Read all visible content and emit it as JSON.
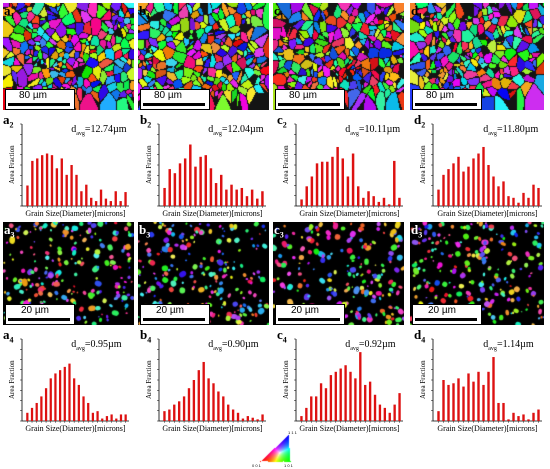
{
  "maps_top": [
    {
      "id": "a1",
      "letter": "a",
      "sub": "1",
      "scale": "80 µm"
    },
    {
      "id": "b1",
      "letter": "b",
      "sub": "1",
      "scale": "80 µm"
    },
    {
      "id": "c1",
      "letter": "c",
      "sub": "1",
      "scale": "80 µm"
    },
    {
      "id": "d1",
      "letter": "d",
      "sub": "1",
      "scale": "80 µm"
    }
  ],
  "maps_bottom": [
    {
      "id": "a3",
      "letter": "a",
      "sub": "3",
      "scale": "20 µm"
    },
    {
      "id": "b3",
      "letter": "b",
      "sub": "3",
      "scale": "20 µm"
    },
    {
      "id": "c3",
      "letter": "c",
      "sub": "3",
      "scale": "20 µm"
    },
    {
      "id": "d3",
      "letter": "d",
      "sub": "3",
      "scale": "20 µm"
    }
  ],
  "ipf_key": {
    "corner_111": "1 1 1",
    "corner_001": "0 0 1",
    "corner_101": "1 0 1"
  },
  "chart_data": [
    {
      "id": "a2",
      "letter": "a",
      "sub": "2",
      "type": "bar",
      "davg_prefix": "d",
      "davg_sub": "avg",
      "davg_value": "=12.74µm",
      "ylabel": "Area Fraction",
      "xlabel": "Grain Size(Diameter)[microns]",
      "color": "#dd1111",
      "values": [
        0.25,
        0.55,
        0.58,
        0.62,
        0.64,
        0.62,
        0.46,
        0.58,
        0.38,
        0.5,
        0.38,
        0.18,
        0.26,
        0.1,
        0.06,
        0.2,
        0.09,
        0.06,
        0.18,
        0.06,
        0.17
      ]
    },
    {
      "id": "b2",
      "letter": "b",
      "sub": "2",
      "type": "bar",
      "davg_prefix": "d",
      "davg_sub": "avg",
      "davg_value": "=12.04µm",
      "ylabel": "Area Fraction",
      "xlabel": "Grain Size(Diameter)[microns]",
      "color": "#dd1111",
      "values": [
        0.22,
        0.45,
        0.4,
        0.52,
        0.58,
        0.75,
        0.48,
        0.6,
        0.62,
        0.46,
        0.28,
        0.38,
        0.2,
        0.26,
        0.2,
        0.22,
        0.12,
        0.2,
        0.09,
        0.18
      ]
    },
    {
      "id": "c2",
      "letter": "c",
      "sub": "2",
      "type": "bar",
      "davg_prefix": "d",
      "davg_sub": "avg",
      "davg_value": "=10.11µm",
      "ylabel": "Area Fraction",
      "xlabel": "Grain Size(Diameter)[microns]",
      "color": "#dd1111",
      "values": [
        0.08,
        0.24,
        0.36,
        0.52,
        0.54,
        0.54,
        0.6,
        0.72,
        0.58,
        0.36,
        0.64,
        0.24,
        0.1,
        0.18,
        0.12,
        0.05,
        0.1,
        0.02,
        0.55,
        0.1
      ]
    },
    {
      "id": "d2",
      "letter": "d",
      "sub": "2",
      "type": "bar",
      "davg_prefix": "d",
      "davg_sub": "avg",
      "davg_value": "=11.80µm",
      "ylabel": "Area Fraction",
      "xlabel": "Grain Size(Diameter)[microns]",
      "color": "#dd1111",
      "values": [
        0.2,
        0.38,
        0.45,
        0.52,
        0.6,
        0.42,
        0.48,
        0.58,
        0.64,
        0.72,
        0.5,
        0.36,
        0.24,
        0.3,
        0.12,
        0.1,
        0.04,
        0.16,
        0.1,
        0.26,
        0.22
      ]
    },
    {
      "id": "a4",
      "letter": "a",
      "sub": "4",
      "type": "bar",
      "davg_prefix": "d",
      "davg_sub": "avg",
      "davg_value": "=0.95µm",
      "ylabel": "Area Fraction",
      "xlabel": "Grain Size(Diameter)[microns]",
      "color": "#dd1111",
      "values": [
        0.1,
        0.16,
        0.22,
        0.3,
        0.4,
        0.52,
        0.58,
        0.62,
        0.66,
        0.7,
        0.52,
        0.44,
        0.3,
        0.22,
        0.1,
        0.12,
        0.03,
        0.06,
        0.08,
        0.03,
        0.08,
        0.08
      ]
    },
    {
      "id": "b4",
      "letter": "b",
      "sub": "4",
      "type": "bar",
      "davg_prefix": "d",
      "davg_sub": "avg",
      "davg_value": "=0.90µm",
      "ylabel": "Area Fraction",
      "xlabel": "Grain Size(Diameter)[microns]",
      "color": "#dd1111",
      "values": [
        0.12,
        0.14,
        0.2,
        0.24,
        0.3,
        0.4,
        0.5,
        0.62,
        0.72,
        0.52,
        0.46,
        0.36,
        0.3,
        0.2,
        0.14,
        0.1,
        0.03,
        0.06,
        0.04,
        0.02,
        0.08
      ]
    },
    {
      "id": "c4",
      "letter": "c",
      "sub": "4",
      "type": "bar",
      "davg_prefix": "d",
      "davg_sub": "avg",
      "davg_value": "=0.92µm",
      "ylabel": "Area Fraction",
      "xlabel": "Grain Size(Diameter)[microns]",
      "color": "#dd1111",
      "values": [
        0.06,
        0.16,
        0.3,
        0.3,
        0.46,
        0.4,
        0.56,
        0.6,
        0.64,
        0.68,
        0.6,
        0.52,
        0.84,
        0.44,
        0.48,
        0.32,
        0.2,
        0.16,
        0.1,
        0.2,
        0.34
      ]
    },
    {
      "id": "d4",
      "letter": "d",
      "sub": "4",
      "type": "bar",
      "davg_prefix": "d",
      "davg_sub": "avg",
      "davg_value": "=1.14µm",
      "ylabel": "Area Fraction",
      "xlabel": "Grain Size(Diameter)[microns]",
      "color": "#dd1111",
      "values": [
        0.12,
        0.5,
        0.44,
        0.46,
        0.52,
        0.42,
        0.58,
        0.48,
        0.6,
        0.44,
        0.6,
        0.78,
        0.22,
        0.22,
        0.02,
        0.1,
        0.06,
        0.08,
        0.02,
        0.1,
        0.14
      ]
    }
  ]
}
